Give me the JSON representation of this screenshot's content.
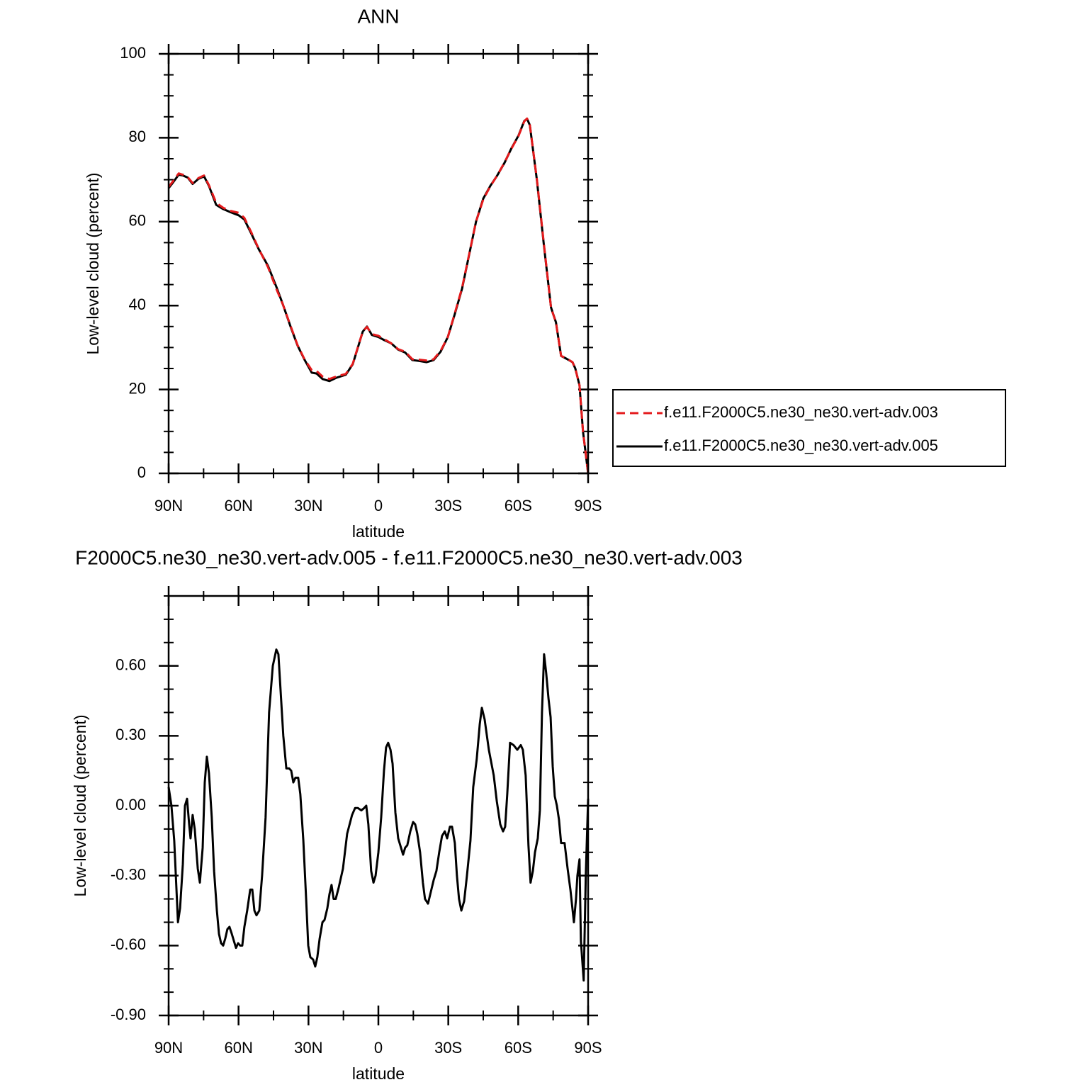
{
  "chart_data": [
    {
      "type": "line",
      "title": "ANN",
      "xlabel": "latitude",
      "ylabel": "Low-level cloud (percent)",
      "x": [
        90,
        87.9,
        85.7,
        83.9,
        81.8,
        79.7,
        77.2,
        74.8,
        72.7,
        69.6,
        66.6,
        63.6,
        59.9,
        57.5,
        54.4,
        51.4,
        47.4,
        43.8,
        40.8,
        37.7,
        34.7,
        31.6,
        28.6,
        26.5,
        24.0,
        21.0,
        18.0,
        14.0,
        11.0,
        8.8,
        6.7,
        4.9,
        2.8,
        0.0,
        -2.4,
        -5.5,
        -8.5,
        -11.5,
        -14.6,
        -17.6,
        -20.7,
        -23.7,
        -26.7,
        -29.8,
        -32.8,
        -35.9,
        -38.9,
        -41.9,
        -45.0,
        -48.0,
        -51.0,
        -54.1,
        -57.1,
        -60.1,
        -62.6,
        -63.8,
        -65.0,
        -68.0,
        -71.1,
        -74.1,
        -76.2,
        -78.4,
        -80.8,
        -83.3,
        -84.5,
        -86.3,
        -87.8,
        -90
      ],
      "series": [
        {
          "name": "f.e11.F2000C5.ne30_ne30.vert-adv.003",
          "color": "#e41a1c",
          "dash": true,
          "values": [
            68.3,
            69.8,
            71.5,
            71.2,
            70.6,
            69.2,
            70.4,
            71,
            68.7,
            64.5,
            63.3,
            62.6,
            62.1,
            60.9,
            57.3,
            53.6,
            49.2,
            44,
            40,
            35.2,
            30.6,
            27.1,
            24.6,
            24.4,
            23.1,
            22.5,
            23.1,
            23.7,
            26.1,
            30.1,
            33.8,
            34.9,
            33.2,
            32.8,
            32,
            31,
            29.6,
            29,
            27.2,
            27.1,
            26.9,
            27.2,
            29.2,
            32.5,
            38.2,
            44.2,
            52.1,
            60,
            65.3,
            68.4,
            71,
            74.1,
            77.4,
            80.4,
            83.9,
            84.6,
            83,
            70.2,
            54.3,
            39.4,
            36,
            28,
            27.4,
            26.5,
            25,
            21,
            10,
            0
          ]
        },
        {
          "name": "f.e11.F2000C5.ne30_ne30.vert-adv.005",
          "color": "#000000",
          "dash": false,
          "values": [
            68,
            69.5,
            71.2,
            71,
            70.5,
            69,
            70.2,
            70.8,
            68.5,
            64,
            63,
            62.3,
            61.5,
            60.5,
            57,
            53.5,
            49.5,
            44.5,
            40,
            35,
            30.5,
            27,
            24,
            23.8,
            22.5,
            22,
            22.8,
            23.5,
            26,
            30,
            33.8,
            35,
            33,
            32.5,
            31.8,
            31,
            29.5,
            28.8,
            27,
            26.8,
            26.5,
            27,
            29,
            32.5,
            38,
            44,
            52,
            60,
            65.5,
            68.5,
            71,
            74,
            77.5,
            80.5,
            84,
            84.5,
            83,
            70,
            54,
            39.5,
            36,
            28,
            27.3,
            26.5,
            25,
            21,
            10,
            0
          ]
        }
      ],
      "xlim": [
        90,
        -90
      ],
      "xticks": [
        {
          "value": 90,
          "label": "90N"
        },
        {
          "value": 60,
          "label": "60N"
        },
        {
          "value": 30,
          "label": "30N"
        },
        0,
        {
          "value": -30,
          "label": "30S"
        },
        {
          "value": -60,
          "label": "60S"
        },
        {
          "value": -90,
          "label": "90S"
        }
      ],
      "xminorticks": [
        75,
        45,
        15,
        -15,
        -45,
        -75
      ],
      "ylim": [
        0,
        100
      ],
      "yticks": [
        0,
        20,
        40,
        60,
        80,
        100
      ],
      "yminorticks": [
        5,
        10,
        15,
        25,
        30,
        35,
        45,
        50,
        55,
        65,
        70,
        75,
        85,
        90,
        95
      ],
      "legend": "right"
    },
    {
      "type": "line",
      "title": "F2000C5.ne30_ne30.vert-adv.005 - f.e11.F2000C5.ne30_ne30.vert-adv.003",
      "xlabel": "latitude",
      "ylabel": "Low-level cloud (percent)",
      "color": "#000000",
      "x": [
        90.0,
        88.8,
        87.6,
        86.0,
        85.1,
        83.9,
        83.0,
        82.1,
        81.2,
        80.6,
        79.7,
        78.8,
        77.5,
        76.6,
        75.4,
        74.5,
        73.6,
        72.7,
        71.5,
        70.5,
        69.3,
        68.4,
        67.5,
        66.6,
        65.7,
        64.8,
        63.9,
        62.9,
        62.0,
        61.1,
        60.2,
        59.3,
        58.4,
        57.5,
        56.3,
        55.0,
        54.1,
        53.2,
        52.3,
        51.1,
        49.9,
        48.4,
        46.9,
        45.3,
        43.8,
        42.9,
        42.0,
        40.8,
        39.5,
        38.3,
        37.4,
        36.5,
        35.6,
        34.4,
        33.5,
        32.2,
        31.0,
        30.1,
        29.2,
        28.0,
        27.1,
        26.2,
        25.2,
        24.0,
        23.1,
        21.9,
        21.0,
        20.1,
        19.2,
        18.3,
        17.0,
        15.2,
        13.4,
        11.3,
        10.0,
        8.8,
        7.3,
        6.1,
        5.2,
        4.3,
        3.1,
        2.1,
        1.2,
        0.0,
        -1.2,
        -2.4,
        -3.3,
        -4.2,
        -5.2,
        -6.1,
        -7.3,
        -8.5,
        -9.7,
        -10.6,
        -11.5,
        -12.4,
        -13.7,
        -14.9,
        -15.8,
        -16.7,
        -17.9,
        -19.1,
        -20.0,
        -21.3,
        -22.5,
        -23.7,
        -24.9,
        -26.1,
        -27.3,
        -28.5,
        -29.5,
        -30.7,
        -31.6,
        -32.8,
        -33.7,
        -34.6,
        -35.6,
        -36.8,
        -38.0,
        -39.5,
        -40.7,
        -42.2,
        -43.5,
        -44.4,
        -45.6,
        -47.4,
        -49.5,
        -50.8,
        -52.3,
        -53.5,
        -54.4,
        -55.3,
        -56.5,
        -58.0,
        -59.6,
        -61.1,
        -62.0,
        -63.2,
        -64.4,
        -65.3,
        -66.3,
        -67.2,
        -68.4,
        -69.3,
        -70.2,
        -71.1,
        -72.0,
        -73.0,
        -73.9,
        -74.8,
        -75.7,
        -76.6,
        -77.5,
        -78.4,
        -79.9,
        -81.2,
        -82.4,
        -83.9,
        -84.8,
        -85.4,
        -86.3,
        -86.9,
        -88.1,
        -89.0,
        -90.0
      ],
      "values": [
        0.08,
        0,
        -0.15,
        -0.5,
        -0.44,
        -0.25,
        0,
        0.03,
        -0.08,
        -0.14,
        -0.04,
        -0.1,
        -0.27,
        -0.33,
        -0.18,
        0.1,
        0.21,
        0.14,
        -0.05,
        -0.28,
        -0.45,
        -0.55,
        -0.59,
        -0.6,
        -0.57,
        -0.53,
        -0.52,
        -0.55,
        -0.58,
        -0.61,
        -0.59,
        -0.6,
        -0.6,
        -0.52,
        -0.45,
        -0.36,
        -0.36,
        -0.45,
        -0.47,
        -0.45,
        -0.3,
        -0.05,
        0.4,
        0.6,
        0.67,
        0.65,
        0.5,
        0.3,
        0.16,
        0.16,
        0.15,
        0.1,
        0.12,
        0.12,
        0.05,
        -0.15,
        -0.4,
        -0.6,
        -0.65,
        -0.66,
        -0.69,
        -0.65,
        -0.57,
        -0.5,
        -0.49,
        -0.44,
        -0.38,
        -0.34,
        -0.4,
        -0.4,
        -0.35,
        -0.27,
        -0.12,
        -0.04,
        -0.01,
        -0.01,
        -0.02,
        -0.01,
        0,
        -0.08,
        -0.28,
        -0.33,
        -0.3,
        -0.2,
        -0.05,
        0.15,
        0.25,
        0.27,
        0.24,
        0.18,
        -0.03,
        -0.14,
        -0.18,
        -0.21,
        -0.18,
        -0.17,
        -0.11,
        -0.07,
        -0.08,
        -0.12,
        -0.2,
        -0.33,
        -0.4,
        -0.42,
        -0.37,
        -0.32,
        -0.28,
        -0.2,
        -0.13,
        -0.11,
        -0.14,
        -0.09,
        -0.09,
        -0.16,
        -0.3,
        -0.4,
        -0.45,
        -0.41,
        -0.3,
        -0.15,
        0.08,
        0.2,
        0.35,
        0.42,
        0.37,
        0.24,
        0.13,
        0.02,
        -0.08,
        -0.11,
        -0.09,
        0.05,
        0.27,
        0.26,
        0.24,
        0.26,
        0.24,
        0.13,
        -0.17,
        -0.33,
        -0.28,
        -0.2,
        -0.14,
        -0.02,
        0.4,
        0.65,
        0.57,
        0.46,
        0.38,
        0.17,
        0.04,
        0.0,
        -0.06,
        -0.16,
        -0.16,
        -0.27,
        -0.36,
        -0.5,
        -0.4,
        -0.3,
        -0.23,
        -0.58,
        -0.75,
        -0.3,
        0.03
      ],
      "xlim": [
        90,
        -90
      ],
      "xticks": [
        {
          "value": 90,
          "label": "90N"
        },
        {
          "value": 60,
          "label": "60N"
        },
        {
          "value": 30,
          "label": "30N"
        },
        0,
        {
          "value": -30,
          "label": "30S"
        },
        {
          "value": -60,
          "label": "60S"
        },
        {
          "value": -90,
          "label": "90S"
        }
      ],
      "xminorticks": [
        75,
        45,
        15,
        -15,
        -45,
        -75
      ],
      "ylim": [
        -0.9,
        0.9
      ],
      "yticks": [
        {
          "value": -0.9,
          "label": "-0.90"
        },
        {
          "value": -0.6,
          "label": "-0.60"
        },
        {
          "value": -0.3,
          "label": "-0.30"
        },
        {
          "value": 0,
          "label": "0.00"
        },
        {
          "value": 0.3,
          "label": "0.30"
        },
        {
          "value": 0.6,
          "label": "0.60"
        }
      ],
      "yminorticks": [
        -0.8,
        -0.7,
        -0.5,
        -0.4,
        -0.2,
        -0.1,
        0.1,
        0.2,
        0.4,
        0.5,
        0.7,
        0.8,
        0.9
      ]
    }
  ]
}
